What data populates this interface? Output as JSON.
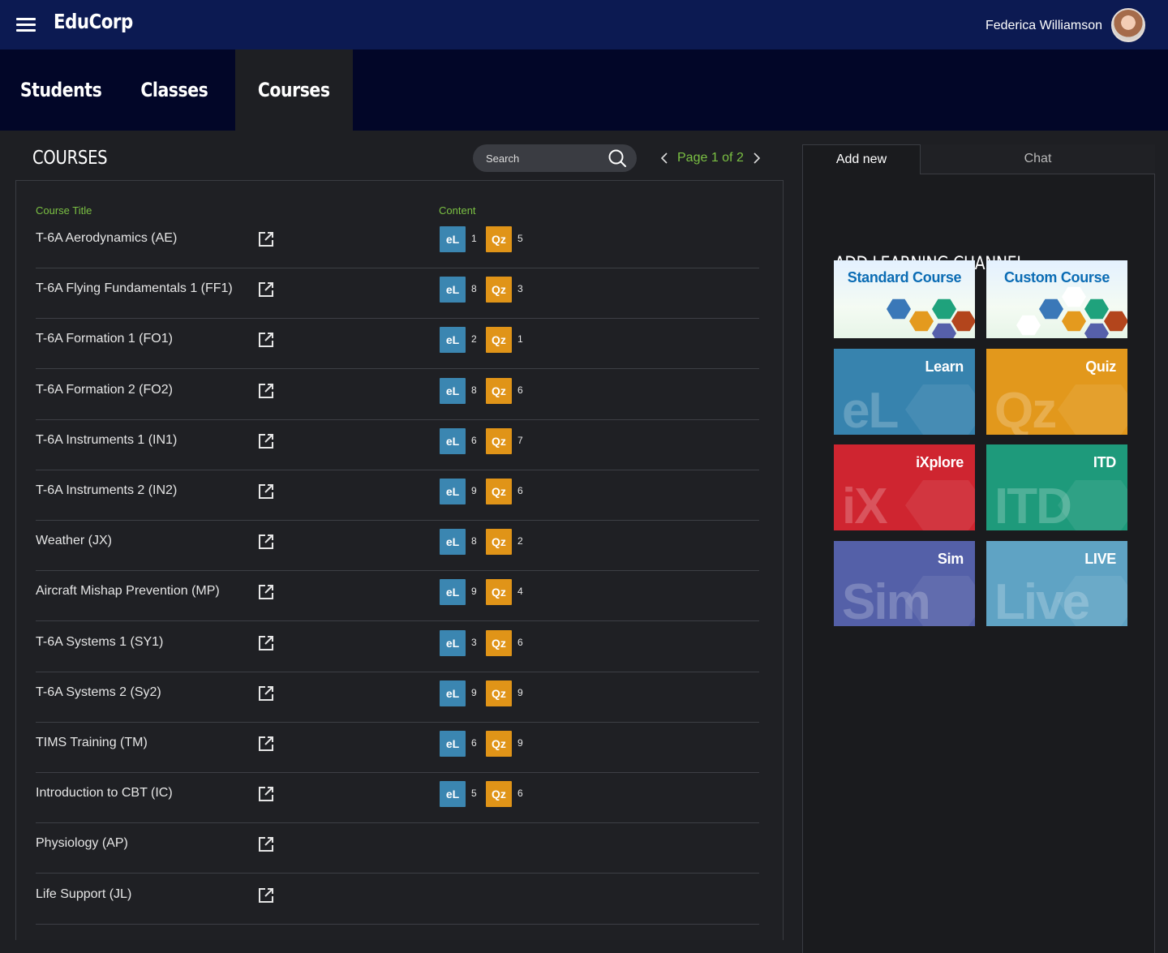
{
  "app": {
    "brand": "EduCorp",
    "user_name": "Federica Williamson"
  },
  "nav": {
    "tabs": [
      {
        "label": "Students"
      },
      {
        "label": "Classes"
      },
      {
        "label": "Courses"
      }
    ],
    "active": "Courses"
  },
  "courses": {
    "heading": "COURSES",
    "search_placeholder": "Search",
    "pager": "Page 1 of 2",
    "columns": {
      "title": "Course Title",
      "content": "Content"
    },
    "badges": {
      "el": "eL",
      "qz": "Qz"
    },
    "rows": [
      {
        "title": "T-6A Aerodynamics (AE)",
        "el": "1",
        "qz": "5"
      },
      {
        "title": "T-6A Flying Fundamentals 1 (FF1)",
        "el": "8",
        "qz": "3"
      },
      {
        "title": "T-6A Formation 1 (FO1)",
        "el": "2",
        "qz": "1"
      },
      {
        "title": "T-6A Formation 2 (FO2)",
        "el": "8",
        "qz": "6"
      },
      {
        "title": "T-6A Instruments 1 (IN1)",
        "el": "6",
        "qz": "7"
      },
      {
        "title": "T-6A Instruments 2 (IN2)",
        "el": "9",
        "qz": "6"
      },
      {
        "title": "Weather (JX)",
        "el": "8",
        "qz": "2"
      },
      {
        "title": "Aircraft Mishap Prevention (MP)",
        "el": "9",
        "qz": "4"
      },
      {
        "title": "T-6A Systems 1 (SY1)",
        "el": "3",
        "qz": "6"
      },
      {
        "title": "T-6A Systems 2 (Sy2)",
        "el": "9",
        "qz": "9"
      },
      {
        "title": "TIMS Training (TM)",
        "el": "6",
        "qz": "9"
      },
      {
        "title": "Introduction to CBT (IC)",
        "el": "5",
        "qz": "6"
      },
      {
        "title": "Physiology (AP)"
      },
      {
        "title": "Life Support (JL)"
      }
    ]
  },
  "side": {
    "tabs": [
      {
        "label": "Add new"
      },
      {
        "label": "Chat"
      }
    ],
    "heading": "ADD LEARNING CHANNEL",
    "cards": [
      {
        "label": "Standard Course"
      },
      {
        "label": "Custom Course"
      },
      {
        "label": "Learn",
        "big": "eL",
        "color": "#3783ae"
      },
      {
        "label": "Quiz",
        "big": "Qz",
        "color": "#e2981c"
      },
      {
        "label": "iXplore",
        "big": "iX",
        "color": "#cf2530"
      },
      {
        "label": "ITD",
        "big": "ITD",
        "color": "#1e9a7b"
      },
      {
        "label": "Sim",
        "big": "Sim",
        "color": "#5460a8"
      },
      {
        "label": "LIVE",
        "big": "Live",
        "color": "#5fa3c4"
      }
    ]
  }
}
